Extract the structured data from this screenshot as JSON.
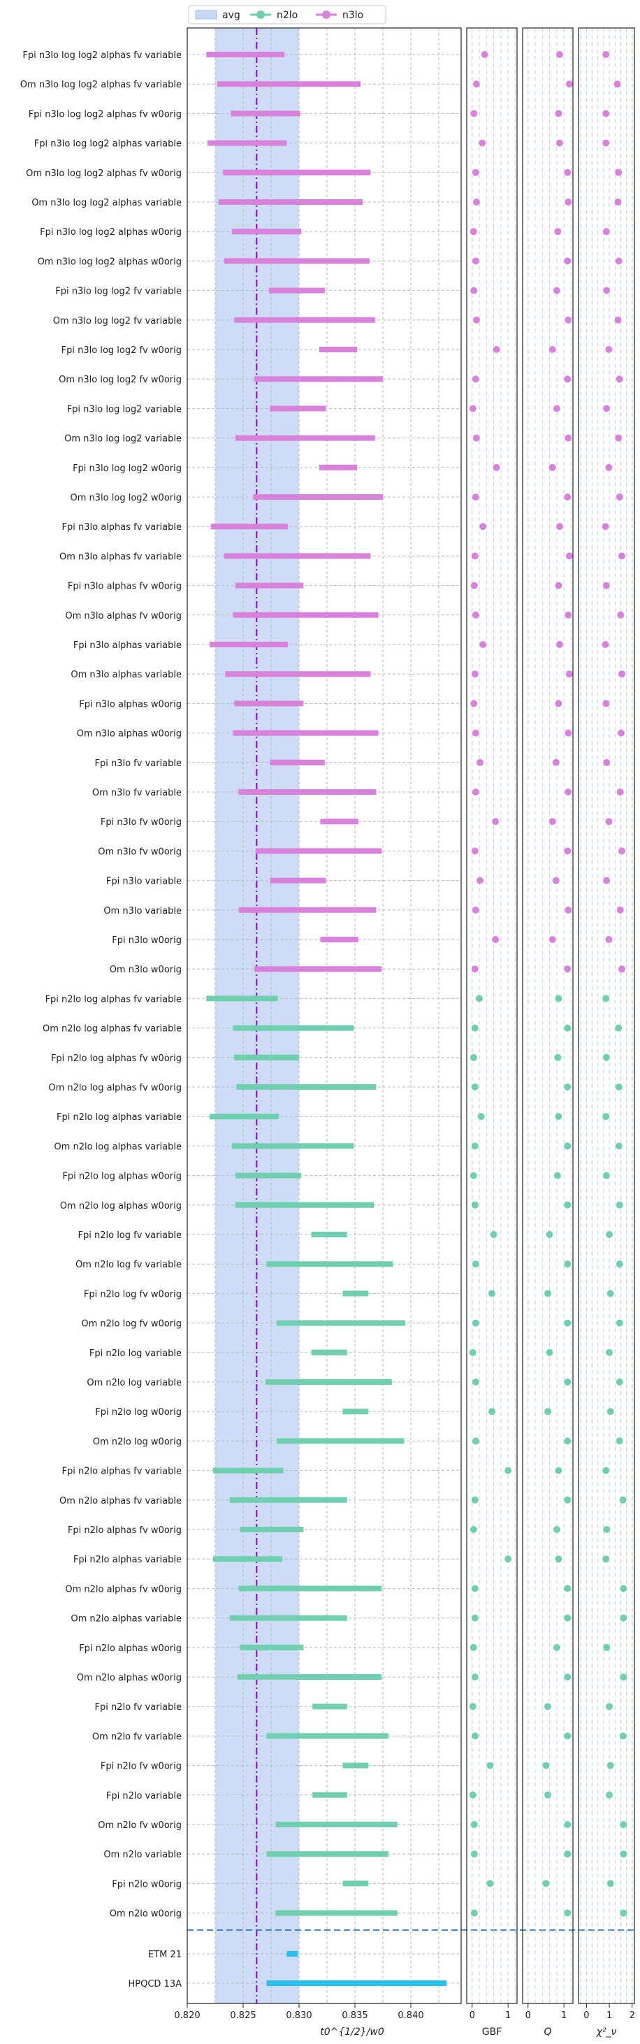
{
  "legend": {
    "entries": [
      {
        "label": "avg",
        "kind": "band",
        "color": "#c8d9f5"
      },
      {
        "label": "n2lo",
        "kind": "line-dot",
        "color": "#6fcfae"
      },
      {
        "label": "n3lo",
        "kind": "line-dot",
        "color": "#d982dc"
      }
    ]
  },
  "chart_data": {
    "type": "range-forest-plot",
    "colors": {
      "n3lo": "#d982dc",
      "n2lo": "#6fcfae",
      "reference": "#29bff0",
      "avg_band": "#c8d9f5",
      "avg_line": "#9b1ee0",
      "separator": "#2f78c4"
    },
    "main_panel": {
      "xlabel": "t0^{1/2}/w0",
      "xlim": [
        0.82,
        0.8445
      ],
      "xticks": [
        "0.820",
        "0.825",
        "0.830",
        "0.835",
        "0.840"
      ],
      "avg_band": [
        0.8225,
        0.83
      ],
      "avg_center": 0.8262
    },
    "panels": [
      {
        "name": "GBF",
        "xlim": [
          -0.15,
          1.25
        ],
        "xticks": [
          "0",
          "1"
        ]
      },
      {
        "name": "Q",
        "xlim": [
          -0.15,
          1.25
        ],
        "xticks": [
          "0",
          "1"
        ]
      },
      {
        "name": "χ²_ν",
        "xlim": [
          -0.35,
          2.1
        ],
        "xticks": [
          "0",
          "1",
          "2"
        ]
      }
    ],
    "rows": [
      {
        "label": "Fpi n3lo log log2 alphas fv variable",
        "group": "n3lo",
        "lo": 0.8217,
        "hi": 0.8287,
        "gbf": 0.35,
        "q": 0.88,
        "chi2": 0.85
      },
      {
        "label": "Om n3lo log log2 alphas fv variable",
        "group": "n3lo",
        "lo": 0.8227,
        "hi": 0.8355,
        "gbf": 0.12,
        "q": 1.15,
        "chi2": 1.35
      },
      {
        "label": "Fpi n3lo log log2 alphas fv w0orig",
        "group": "n3lo",
        "lo": 0.8239,
        "hi": 0.8301,
        "gbf": 0.05,
        "q": 0.85,
        "chi2": 0.85
      },
      {
        "label": "Fpi n3lo log log2 alphas variable",
        "group": "n3lo",
        "lo": 0.8218,
        "hi": 0.8289,
        "gbf": 0.28,
        "q": 0.88,
        "chi2": 0.85
      },
      {
        "label": "Om n3lo log log2 alphas fv w0orig",
        "group": "n3lo",
        "lo": 0.8232,
        "hi": 0.8364,
        "gbf": 0.1,
        "q": 1.1,
        "chi2": 1.4
      },
      {
        "label": "Om n3lo log log2 alphas variable",
        "group": "n3lo",
        "lo": 0.8228,
        "hi": 0.8357,
        "gbf": 0.12,
        "q": 1.12,
        "chi2": 1.38
      },
      {
        "label": "Fpi n3lo log log2 alphas w0orig",
        "group": "n3lo",
        "lo": 0.824,
        "hi": 0.8302,
        "gbf": 0.04,
        "q": 0.83,
        "chi2": 0.87
      },
      {
        "label": "Om n3lo log log2 alphas w0orig",
        "group": "n3lo",
        "lo": 0.8233,
        "hi": 0.8363,
        "gbf": 0.1,
        "q": 1.1,
        "chi2": 1.42
      },
      {
        "label": "Fpi n3lo log log2 fv variable",
        "group": "n3lo",
        "lo": 0.8273,
        "hi": 0.8323,
        "gbf": 0.05,
        "q": 0.8,
        "chi2": 0.88
      },
      {
        "label": "Om n3lo log log2 fv variable",
        "group": "n3lo",
        "lo": 0.8242,
        "hi": 0.8368,
        "gbf": 0.12,
        "q": 1.12,
        "chi2": 1.38
      },
      {
        "label": "Fpi n3lo log log2 fv w0orig",
        "group": "n3lo",
        "lo": 0.8318,
        "hi": 0.8352,
        "gbf": 0.68,
        "q": 0.68,
        "chi2": 0.98
      },
      {
        "label": "Om n3lo log log2 fv w0orig",
        "group": "n3lo",
        "lo": 0.826,
        "hi": 0.8375,
        "gbf": 0.1,
        "q": 1.1,
        "chi2": 1.45
      },
      {
        "label": "Fpi n3lo log log2 variable",
        "group": "n3lo",
        "lo": 0.8274,
        "hi": 0.8324,
        "gbf": 0.02,
        "q": 0.8,
        "chi2": 0.88
      },
      {
        "label": "Om n3lo log log2 variable",
        "group": "n3lo",
        "lo": 0.8243,
        "hi": 0.8368,
        "gbf": 0.12,
        "q": 1.12,
        "chi2": 1.4
      },
      {
        "label": "Fpi n3lo log log2 w0orig",
        "group": "n3lo",
        "lo": 0.8318,
        "hi": 0.8352,
        "gbf": 0.68,
        "q": 0.68,
        "chi2": 0.98
      },
      {
        "label": "Om n3lo log log2 w0orig",
        "group": "n3lo",
        "lo": 0.8259,
        "hi": 0.8375,
        "gbf": 0.1,
        "q": 1.1,
        "chi2": 1.45
      },
      {
        "label": "Fpi n3lo alphas fv variable",
        "group": "n3lo",
        "lo": 0.8221,
        "hi": 0.829,
        "gbf": 0.3,
        "q": 0.88,
        "chi2": 0.83
      },
      {
        "label": "Om n3lo alphas fv variable",
        "group": "n3lo",
        "lo": 0.8233,
        "hi": 0.8364,
        "gbf": 0.08,
        "q": 1.15,
        "chi2": 1.55
      },
      {
        "label": "Fpi n3lo alphas fv w0orig",
        "group": "n3lo",
        "lo": 0.8243,
        "hi": 0.8304,
        "gbf": 0.06,
        "q": 0.85,
        "chi2": 0.87
      },
      {
        "label": "Om n3lo alphas fv w0orig",
        "group": "n3lo",
        "lo": 0.8241,
        "hi": 0.8371,
        "gbf": 0.1,
        "q": 1.12,
        "chi2": 1.5
      },
      {
        "label": "Fpi n3lo alphas variable",
        "group": "n3lo",
        "lo": 0.822,
        "hi": 0.829,
        "gbf": 0.3,
        "q": 0.88,
        "chi2": 0.83
      },
      {
        "label": "Om n3lo alphas variable",
        "group": "n3lo",
        "lo": 0.8234,
        "hi": 0.8364,
        "gbf": 0.08,
        "q": 1.15,
        "chi2": 1.55
      },
      {
        "label": "Fpi n3lo alphas w0orig",
        "group": "n3lo",
        "lo": 0.8242,
        "hi": 0.8304,
        "gbf": 0.05,
        "q": 0.85,
        "chi2": 0.86
      },
      {
        "label": "Om n3lo alphas w0orig",
        "group": "n3lo",
        "lo": 0.8241,
        "hi": 0.8371,
        "gbf": 0.1,
        "q": 1.12,
        "chi2": 1.52
      },
      {
        "label": "Fpi n3lo fv variable",
        "group": "n3lo",
        "lo": 0.8274,
        "hi": 0.8323,
        "gbf": 0.22,
        "q": 0.78,
        "chi2": 0.88
      },
      {
        "label": "Om n3lo fv variable",
        "group": "n3lo",
        "lo": 0.8246,
        "hi": 0.8369,
        "gbf": 0.1,
        "q": 1.12,
        "chi2": 1.48
      },
      {
        "label": "Fpi n3lo fv w0orig",
        "group": "n3lo",
        "lo": 0.8319,
        "hi": 0.8353,
        "gbf": 0.65,
        "q": 0.68,
        "chi2": 0.98
      },
      {
        "label": "Om n3lo fv w0orig",
        "group": "n3lo",
        "lo": 0.8261,
        "hi": 0.8374,
        "gbf": 0.08,
        "q": 1.1,
        "chi2": 1.55
      },
      {
        "label": "Fpi n3lo variable",
        "group": "n3lo",
        "lo": 0.8274,
        "hi": 0.8324,
        "gbf": 0.22,
        "q": 0.78,
        "chi2": 0.88
      },
      {
        "label": "Om n3lo variable",
        "group": "n3lo",
        "lo": 0.8246,
        "hi": 0.8369,
        "gbf": 0.1,
        "q": 1.12,
        "chi2": 1.48
      },
      {
        "label": "Fpi n3lo w0orig",
        "group": "n3lo",
        "lo": 0.8319,
        "hi": 0.8353,
        "gbf": 0.65,
        "q": 0.68,
        "chi2": 0.98
      },
      {
        "label": "Om n3lo w0orig",
        "group": "n3lo",
        "lo": 0.826,
        "hi": 0.8374,
        "gbf": 0.08,
        "q": 1.1,
        "chi2": 1.55
      },
      {
        "label": "Fpi n2lo log alphas fv variable",
        "group": "n2lo",
        "lo": 0.8217,
        "hi": 0.8281,
        "gbf": 0.2,
        "q": 0.85,
        "chi2": 0.85
      },
      {
        "label": "Om n2lo log alphas fv variable",
        "group": "n2lo",
        "lo": 0.8241,
        "hi": 0.8349,
        "gbf": 0.08,
        "q": 1.1,
        "chi2": 1.4
      },
      {
        "label": "Fpi n2lo log alphas fv w0orig",
        "group": "n2lo",
        "lo": 0.8242,
        "hi": 0.83,
        "gbf": 0.04,
        "q": 0.83,
        "chi2": 0.87
      },
      {
        "label": "Om n2lo log alphas fv w0orig",
        "group": "n2lo",
        "lo": 0.8244,
        "hi": 0.8369,
        "gbf": 0.08,
        "q": 1.1,
        "chi2": 1.42
      },
      {
        "label": "Fpi n2lo log alphas variable",
        "group": "n2lo",
        "lo": 0.822,
        "hi": 0.8282,
        "gbf": 0.25,
        "q": 0.85,
        "chi2": 0.85
      },
      {
        "label": "Om n2lo log alphas variable",
        "group": "n2lo",
        "lo": 0.824,
        "hi": 0.8349,
        "gbf": 0.08,
        "q": 1.1,
        "chi2": 1.42
      },
      {
        "label": "Fpi n2lo log alphas w0orig",
        "group": "n2lo",
        "lo": 0.8243,
        "hi": 0.8302,
        "gbf": 0.04,
        "q": 0.82,
        "chi2": 0.87
      },
      {
        "label": "Om n2lo log alphas w0orig",
        "group": "n2lo",
        "lo": 0.8243,
        "hi": 0.8367,
        "gbf": 0.08,
        "q": 1.1,
        "chi2": 1.45
      },
      {
        "label": "Fpi n2lo log fv variable",
        "group": "n2lo",
        "lo": 0.8311,
        "hi": 0.8343,
        "gbf": 0.6,
        "q": 0.6,
        "chi2": 1.0
      },
      {
        "label": "Om n2lo log fv variable",
        "group": "n2lo",
        "lo": 0.8271,
        "hi": 0.8384,
        "gbf": 0.1,
        "q": 1.1,
        "chi2": 1.45
      },
      {
        "label": "Fpi n2lo log fv w0orig",
        "group": "n2lo",
        "lo": 0.8339,
        "hi": 0.8362,
        "gbf": 0.55,
        "q": 0.55,
        "chi2": 1.05
      },
      {
        "label": "Om n2lo log fv w0orig",
        "group": "n2lo",
        "lo": 0.828,
        "hi": 0.8395,
        "gbf": 0.1,
        "q": 1.1,
        "chi2": 1.45
      },
      {
        "label": "Fpi n2lo log variable",
        "group": "n2lo",
        "lo": 0.8311,
        "hi": 0.8343,
        "gbf": 0.02,
        "q": 0.6,
        "chi2": 1.0
      },
      {
        "label": "Om n2lo log variable",
        "group": "n2lo",
        "lo": 0.827,
        "hi": 0.8383,
        "gbf": 0.1,
        "q": 1.1,
        "chi2": 1.45
      },
      {
        "label": "Fpi n2lo log w0orig",
        "group": "n2lo",
        "lo": 0.8339,
        "hi": 0.8362,
        "gbf": 0.55,
        "q": 0.55,
        "chi2": 1.05
      },
      {
        "label": "Om n2lo log w0orig",
        "group": "n2lo",
        "lo": 0.828,
        "hi": 0.8394,
        "gbf": 0.1,
        "q": 1.1,
        "chi2": 1.45
      },
      {
        "label": "Fpi n2lo alphas fv variable",
        "group": "n2lo",
        "lo": 0.8223,
        "hi": 0.8286,
        "gbf": 1.0,
        "q": 0.85,
        "chi2": 0.85
      },
      {
        "label": "Om n2lo alphas fv variable",
        "group": "n2lo",
        "lo": 0.8238,
        "hi": 0.8343,
        "gbf": 0.08,
        "q": 1.1,
        "chi2": 1.6
      },
      {
        "label": "Fpi n2lo alphas fv w0orig",
        "group": "n2lo",
        "lo": 0.8247,
        "hi": 0.8304,
        "gbf": 0.04,
        "q": 0.8,
        "chi2": 0.88
      },
      {
        "label": "Fpi n2lo alphas variable",
        "group": "n2lo",
        "lo": 0.8223,
        "hi": 0.8285,
        "gbf": 1.0,
        "q": 0.85,
        "chi2": 0.85
      },
      {
        "label": "Om n2lo alphas fv w0orig",
        "group": "n2lo",
        "lo": 0.8246,
        "hi": 0.8374,
        "gbf": 0.08,
        "q": 1.1,
        "chi2": 1.62
      },
      {
        "label": "Om n2lo alphas variable",
        "group": "n2lo",
        "lo": 0.8238,
        "hi": 0.8343,
        "gbf": 0.08,
        "q": 1.1,
        "chi2": 1.62
      },
      {
        "label": "Fpi n2lo alphas w0orig",
        "group": "n2lo",
        "lo": 0.8247,
        "hi": 0.8304,
        "gbf": 0.04,
        "q": 0.8,
        "chi2": 0.88
      },
      {
        "label": "Om n2lo alphas w0orig",
        "group": "n2lo",
        "lo": 0.8245,
        "hi": 0.8374,
        "gbf": 0.08,
        "q": 1.1,
        "chi2": 1.62
      },
      {
        "label": "Fpi n2lo fv variable",
        "group": "n2lo",
        "lo": 0.8312,
        "hi": 0.8343,
        "gbf": 0.02,
        "q": 0.55,
        "chi2": 1.0
      },
      {
        "label": "Om n2lo fv variable",
        "group": "n2lo",
        "lo": 0.8271,
        "hi": 0.838,
        "gbf": 0.08,
        "q": 1.1,
        "chi2": 1.6
      },
      {
        "label": "Fpi n2lo fv w0orig",
        "group": "n2lo",
        "lo": 0.8339,
        "hi": 0.8362,
        "gbf": 0.5,
        "q": 0.5,
        "chi2": 1.05
      },
      {
        "label": "Fpi n2lo variable",
        "group": "n2lo",
        "lo": 0.8312,
        "hi": 0.8343,
        "gbf": 0.02,
        "q": 0.55,
        "chi2": 1.0
      },
      {
        "label": "Om n2lo fv w0orig",
        "group": "n2lo",
        "lo": 0.8279,
        "hi": 0.8388,
        "gbf": 0.06,
        "q": 1.1,
        "chi2": 1.62
      },
      {
        "label": "Om n2lo variable",
        "group": "n2lo",
        "lo": 0.8271,
        "hi": 0.838,
        "gbf": 0.06,
        "q": 1.1,
        "chi2": 1.62
      },
      {
        "label": "Fpi n2lo w0orig",
        "group": "n2lo",
        "lo": 0.8339,
        "hi": 0.8362,
        "gbf": 0.5,
        "q": 0.5,
        "chi2": 1.05
      },
      {
        "label": "Om n2lo w0orig",
        "group": "n2lo",
        "lo": 0.8279,
        "hi": 0.8388,
        "gbf": 0.06,
        "q": 1.1,
        "chi2": 1.62
      },
      {
        "label": "ETM 21",
        "group": "reference",
        "lo": 0.8289,
        "hi": 0.8299
      },
      {
        "label": "HPQCD 13A",
        "group": "reference",
        "lo": 0.8271,
        "hi": 0.8432
      }
    ]
  }
}
